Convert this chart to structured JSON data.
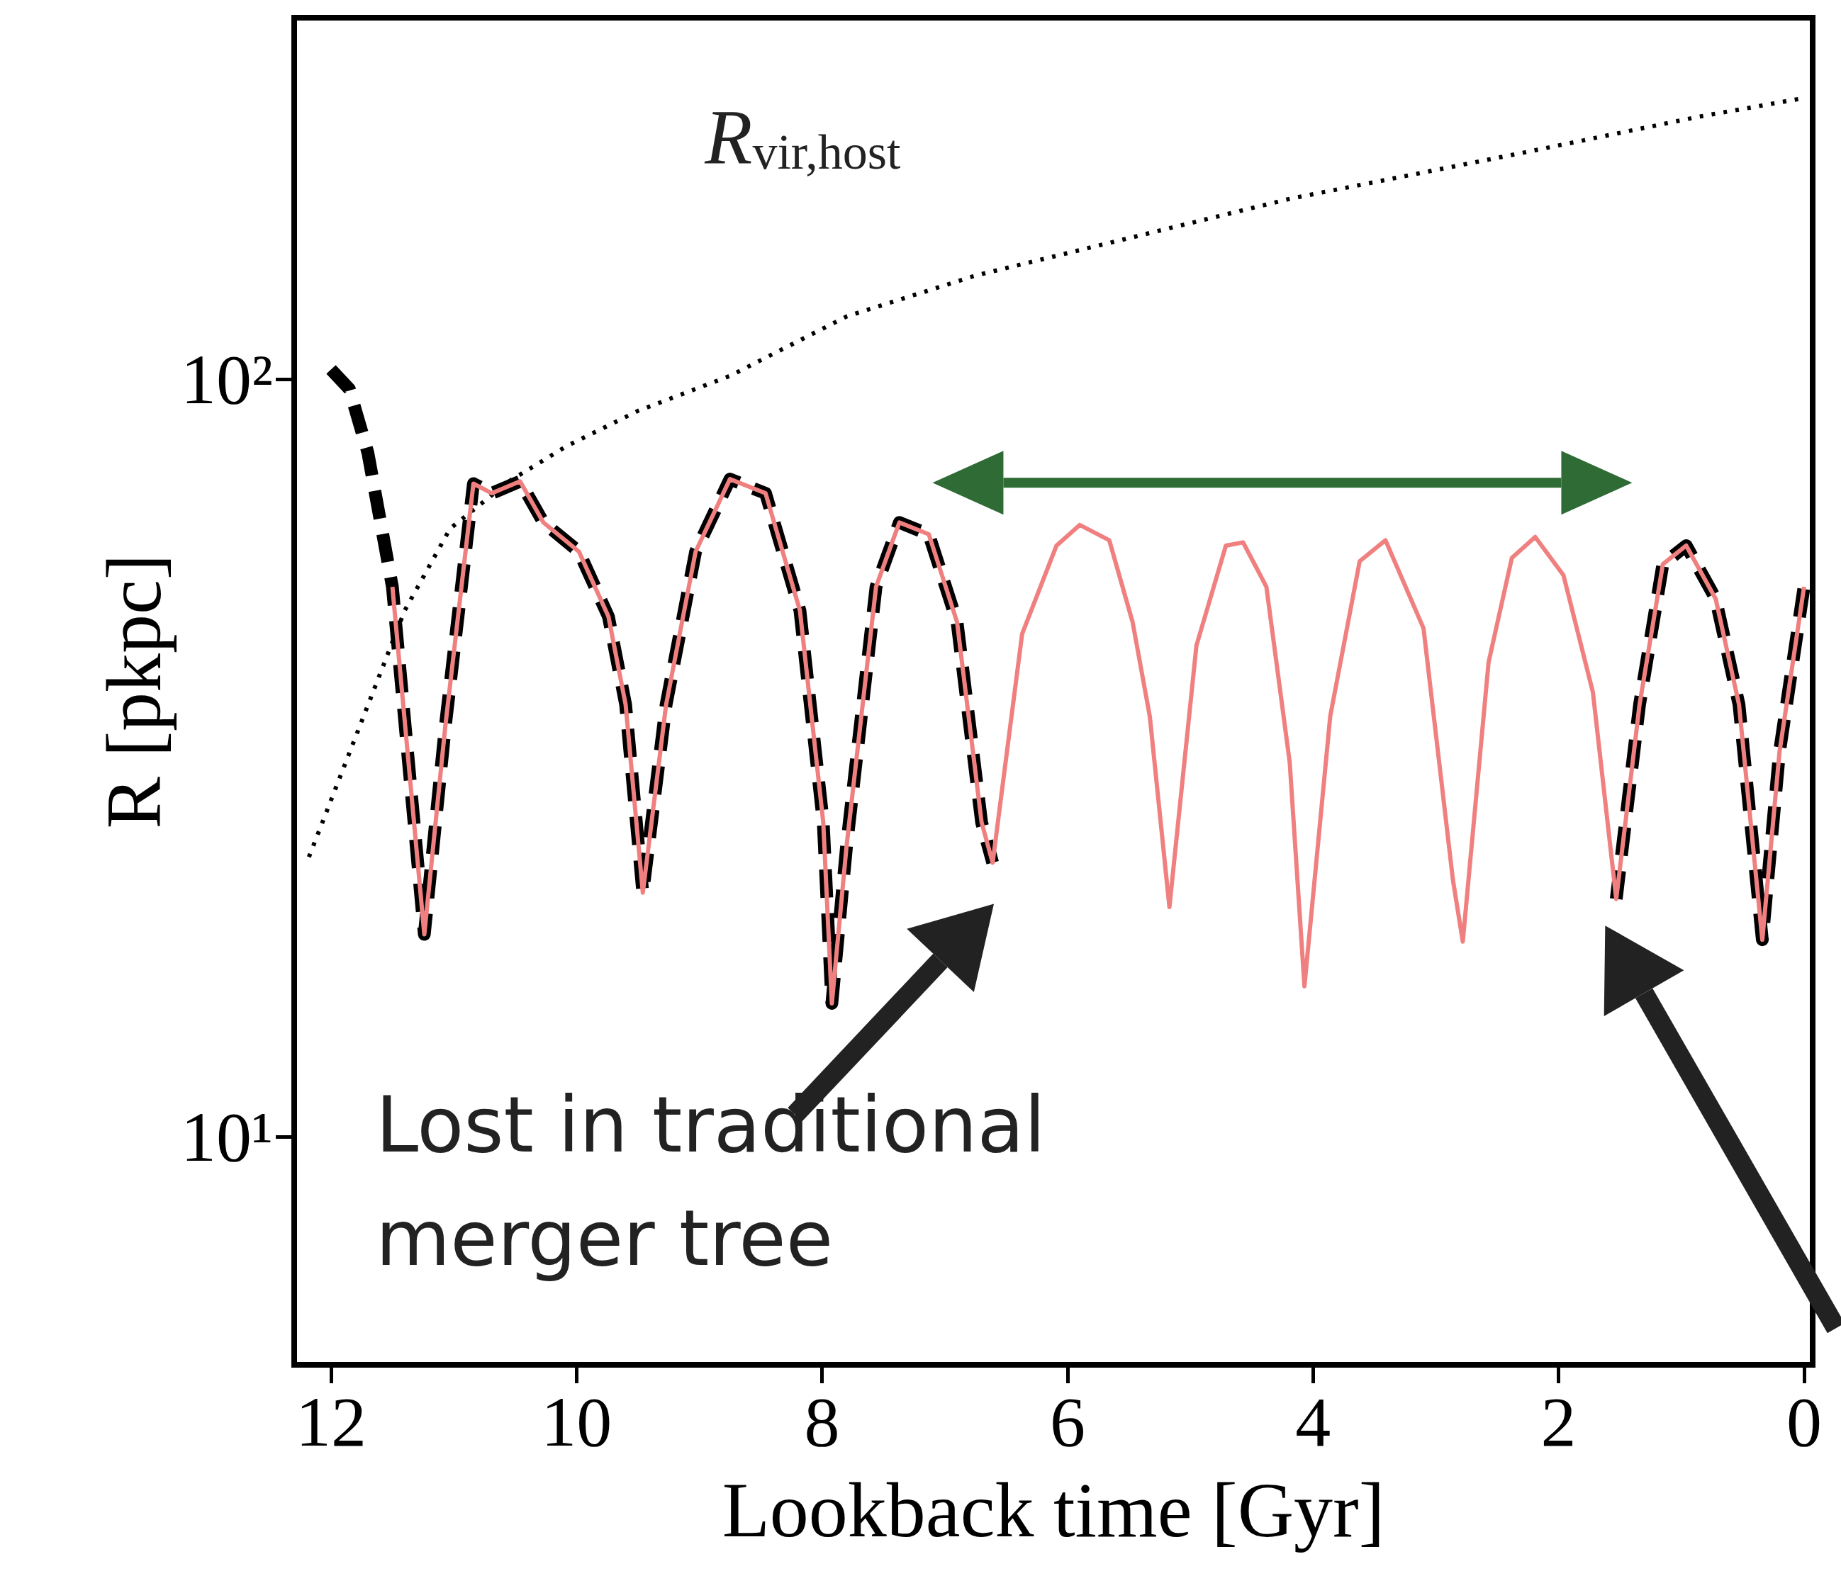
{
  "chart_data": {
    "type": "line",
    "xlabel": "Lookback time [Gyr]",
    "ylabel": "R [pkpc]",
    "xlim": [
      12.3,
      -0.07
    ],
    "xticks": [
      12,
      10,
      8,
      6,
      4,
      2,
      0
    ],
    "ylim": [
      5,
      300
    ],
    "log": "y",
    "yticks": [
      {
        "value": 10,
        "label": "10¹"
      },
      {
        "value": 100,
        "label": "10²"
      }
    ],
    "grid": false,
    "legend": false,
    "marker": "none",
    "annotations": [
      "Lost in traditional merger tree"
    ],
    "series": [
      {
        "name": "R$_{vir,host}$",
        "color": "#000000",
        "line_style": "dotted",
        "x": [
          12.18,
          11.4,
          11.03,
          10.55,
          10.08,
          9.5,
          8.75,
          7.8,
          6.75,
          5.61,
          4.19,
          2.29,
          0.86,
          0
        ],
        "values": [
          23.4,
          49.5,
          63.5,
          73.3,
          81.6,
          90.8,
          101,
          121,
          137,
          152,
          173,
          199,
          222,
          235
        ]
      },
      {
        "color": "#000000",
        "line_style": "dashed",
        "x": [
          12.0,
          11.85,
          11.7,
          11.5,
          11.24,
          11.07,
          10.84,
          10.69,
          10.46,
          10.27,
          9.98,
          9.74,
          9.6,
          9.46,
          9.27,
          9.03,
          8.75,
          8.46,
          8.18,
          7.99,
          7.92,
          7.8,
          7.56,
          7.37,
          7.13,
          6.9,
          6.7,
          6.61,
          5.0,
          1.53,
          1.34,
          1.15,
          0.96,
          0.72,
          0.53,
          0.34,
          0.2,
          0
        ],
        "values": [
          103,
          97,
          80,
          53.2,
          18.5,
          34.7,
          72.8,
          70.7,
          73.3,
          64.7,
          59.2,
          48.6,
          37.2,
          21.0,
          37.2,
          59.2,
          73.8,
          70.7,
          49.5,
          26.0,
          15.0,
          24.2,
          53.2,
          64.7,
          62.4,
          47.8,
          26.0,
          23.0,
          null,
          20.6,
          37.2,
          57.0,
          60.3,
          51.3,
          37.2,
          18.2,
          32.2,
          53.2
        ]
      },
      {
        "color": "#f08080",
        "line_style": "solid",
        "x": [
          11.5,
          11.24,
          11.07,
          10.84,
          10.69,
          10.46,
          10.27,
          9.98,
          9.74,
          9.6,
          9.46,
          9.27,
          9.03,
          8.75,
          8.46,
          8.18,
          7.99,
          7.92,
          7.8,
          7.56,
          7.37,
          7.13,
          6.9,
          6.7,
          6.61,
          6.37,
          6.09,
          5.9,
          5.66,
          5.47,
          5.33,
          5.17,
          4.95,
          4.71,
          4.57,
          4.38,
          4.19,
          4.07,
          3.86,
          3.62,
          3.41,
          3.1,
          2.86,
          2.78,
          2.57,
          2.38,
          2.19,
          1.96,
          1.72,
          1.53,
          1.34,
          1.15,
          0.96,
          0.72,
          0.53,
          0.34,
          0.2,
          0
        ],
        "values": [
          53.2,
          18.5,
          34.7,
          72.8,
          70.7,
          73.3,
          64.7,
          59.2,
          48.6,
          37.2,
          21.0,
          37.2,
          59.2,
          73.8,
          70.7,
          49.5,
          26.0,
          15.0,
          24.2,
          53.2,
          64.7,
          62.4,
          47.8,
          26.0,
          23.0,
          46.1,
          60.3,
          64.2,
          61.3,
          47.8,
          35.9,
          20.1,
          44.5,
          60.3,
          60.9,
          53.2,
          31.2,
          15.8,
          35.9,
          57.5,
          61.3,
          46.9,
          21.8,
          18.1,
          42.3,
          58.1,
          61.9,
          55.1,
          38.6,
          20.6,
          37.2,
          57.0,
          60.3,
          51.3,
          37.2,
          18.2,
          32.2,
          53.2
        ]
      }
    ]
  }
}
